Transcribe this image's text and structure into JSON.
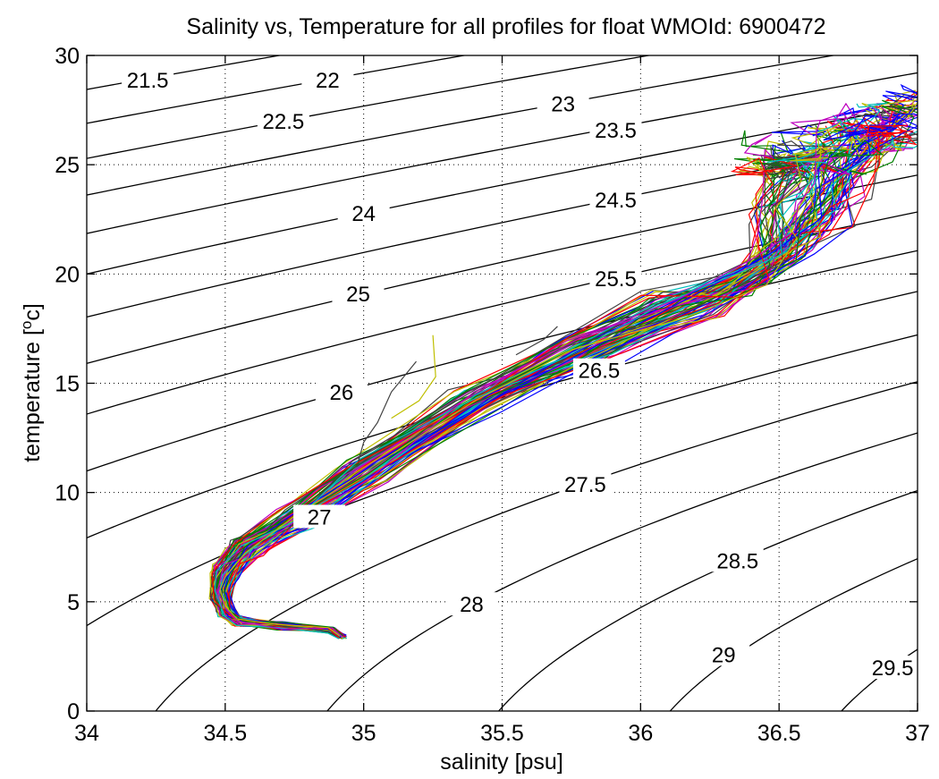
{
  "chart_data": {
    "type": "line",
    "title": "Salinity vs, Temperature for all profiles for float WMOId: 6900472",
    "xlabel": "salinity [psu]",
    "ylabel_main": "temperature [",
    "ylabel_sup": "o",
    "ylabel_tail": "c]",
    "xlim": [
      34,
      37
    ],
    "ylim": [
      0,
      30
    ],
    "xticks": [
      34,
      34.5,
      35,
      35.5,
      36,
      36.5,
      37
    ],
    "xtick_labels": [
      "34",
      "34.5",
      "35",
      "35.5",
      "36",
      "36.5",
      "37"
    ],
    "yticks": [
      0,
      5,
      10,
      15,
      20,
      25,
      30
    ],
    "ytick_labels": [
      "0",
      "5",
      "10",
      "15",
      "20",
      "25",
      "30"
    ],
    "grid": true,
    "density_contours": [
      {
        "label": "21.5",
        "label_s": 34.22,
        "label_t": 28.7
      },
      {
        "label": "22",
        "label_s": 34.87,
        "label_t": 28.7
      },
      {
        "label": "22.5",
        "label_s": 34.71,
        "label_t": 26.8
      },
      {
        "label": "23",
        "label_s": 35.72,
        "label_t": 27.6
      },
      {
        "label": "23.5",
        "label_s": 35.91,
        "label_t": 26.4
      },
      {
        "label": "24",
        "label_s": 35.0,
        "label_t": 22.6
      },
      {
        "label": "24.5",
        "label_s": 35.91,
        "label_t": 23.2
      },
      {
        "label": "25",
        "label_s": 34.98,
        "label_t": 18.9
      },
      {
        "label": "25.5",
        "label_s": 35.91,
        "label_t": 19.6
      },
      {
        "label": "26",
        "label_s": 34.92,
        "label_t": 14.4
      },
      {
        "label": "26.5",
        "label_s": 35.85,
        "label_t": 15.4
      },
      {
        "label": "27",
        "label_s": 34.84,
        "label_t": 8.7
      },
      {
        "label": "27.5",
        "label_s": 35.8,
        "label_t": 10.2
      },
      {
        "label": "28",
        "label_s": 35.39,
        "label_t": 4.7
      },
      {
        "label": "28.5",
        "label_s": 36.35,
        "label_t": 6.7
      },
      {
        "label": "29",
        "label_s": 36.3,
        "label_t": 2.4
      },
      {
        "label": "29.5",
        "label_s": 36.91,
        "label_t": 1.8
      }
    ],
    "series_colors": [
      "#0000ff",
      "#008000",
      "#ff0000",
      "#00bfbf",
      "#bf00bf",
      "#bfbf00",
      "#404040"
    ],
    "profile_count": 90,
    "profile_envelope": {
      "note_points": [
        [
          34.92,
          3.4
        ],
        [
          34.88,
          3.7
        ],
        [
          34.7,
          3.9
        ],
        [
          34.55,
          4.1
        ],
        [
          34.5,
          4.6
        ],
        [
          34.48,
          5.4
        ],
        [
          34.5,
          6.4
        ],
        [
          34.57,
          7.5
        ],
        [
          34.75,
          8.8
        ],
        [
          35.0,
          11.0
        ],
        [
          35.4,
          14.2
        ],
        [
          35.8,
          16.6
        ],
        [
          36.15,
          18.6
        ],
        [
          36.45,
          20.4
        ],
        [
          36.55,
          21.6
        ],
        [
          36.6,
          23.0
        ],
        [
          36.65,
          24.6
        ],
        [
          36.7,
          25.8
        ]
      ]
    }
  }
}
